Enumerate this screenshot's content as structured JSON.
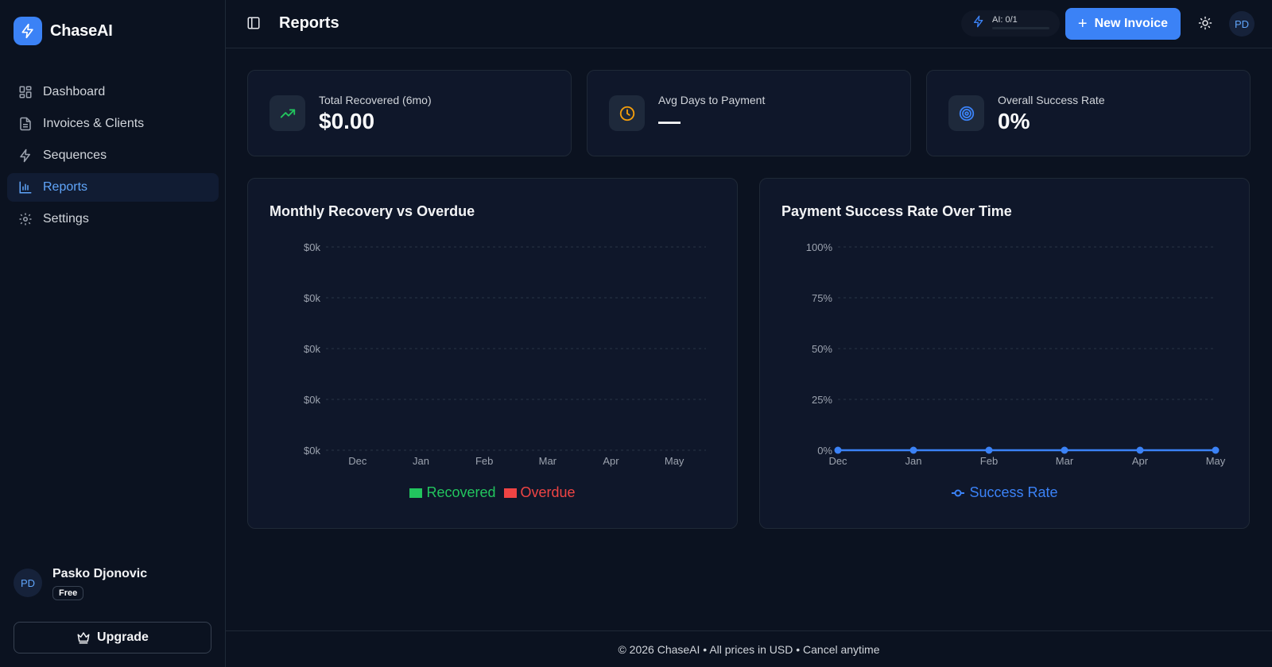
{
  "brand": {
    "name": "ChaseAI"
  },
  "sidebar": {
    "items": [
      {
        "label": "Dashboard",
        "icon": "grid-icon",
        "active": false
      },
      {
        "label": "Invoices & Clients",
        "icon": "file-text-icon",
        "active": false
      },
      {
        "label": "Sequences",
        "icon": "lightning-icon",
        "active": false
      },
      {
        "label": "Reports",
        "icon": "bar-chart-icon",
        "active": true
      },
      {
        "label": "Settings",
        "icon": "gear-icon",
        "active": false
      }
    ],
    "user": {
      "initials": "PD",
      "name": "Pasko Djonovic",
      "plan": "Free"
    },
    "upgrade_label": "Upgrade"
  },
  "header": {
    "title": "Reports",
    "ai_usage": "AI: 0/1",
    "ai_usage_fraction": 0,
    "new_invoice_label": "New Invoice",
    "avatar_initials": "PD"
  },
  "stats": [
    {
      "label": "Total Recovered (6mo)",
      "value": "$0.00",
      "icon": "trending-up-icon",
      "color": "#22c55e"
    },
    {
      "label": "Avg Days to Payment",
      "value": "—",
      "icon": "clock-icon",
      "color": "#f59e0b"
    },
    {
      "label": "Overall Success Rate",
      "value": "0%",
      "icon": "target-icon",
      "color": "#3b82f6"
    }
  ],
  "chart_data": [
    {
      "type": "bar",
      "title": "Monthly Recovery vs Overdue",
      "categories": [
        "Dec",
        "Jan",
        "Feb",
        "Mar",
        "Apr",
        "May"
      ],
      "y_ticks": [
        "$0k",
        "$0k",
        "$0k",
        "$0k",
        "$0k"
      ],
      "series": [
        {
          "name": "Recovered",
          "values": [
            0,
            0,
            0,
            0,
            0,
            0
          ],
          "color": "#22c55e"
        },
        {
          "name": "Overdue",
          "values": [
            0,
            0,
            0,
            0,
            0,
            0
          ],
          "color": "#ef4444"
        }
      ],
      "grid": true,
      "legend": "bottom"
    },
    {
      "type": "line",
      "title": "Payment Success Rate Over Time",
      "categories": [
        "Dec",
        "Jan",
        "Feb",
        "Mar",
        "Apr",
        "May"
      ],
      "y_ticks": [
        "100%",
        "75%",
        "50%",
        "25%",
        "0%"
      ],
      "ylim": [
        0,
        100
      ],
      "series": [
        {
          "name": "Success Rate",
          "values": [
            0,
            0,
            0,
            0,
            0,
            0
          ],
          "color": "#3b82f6"
        }
      ],
      "grid": true,
      "legend": "bottom"
    }
  ],
  "footer": {
    "text": "© 2026 ChaseAI • All prices in USD • Cancel anytime"
  }
}
